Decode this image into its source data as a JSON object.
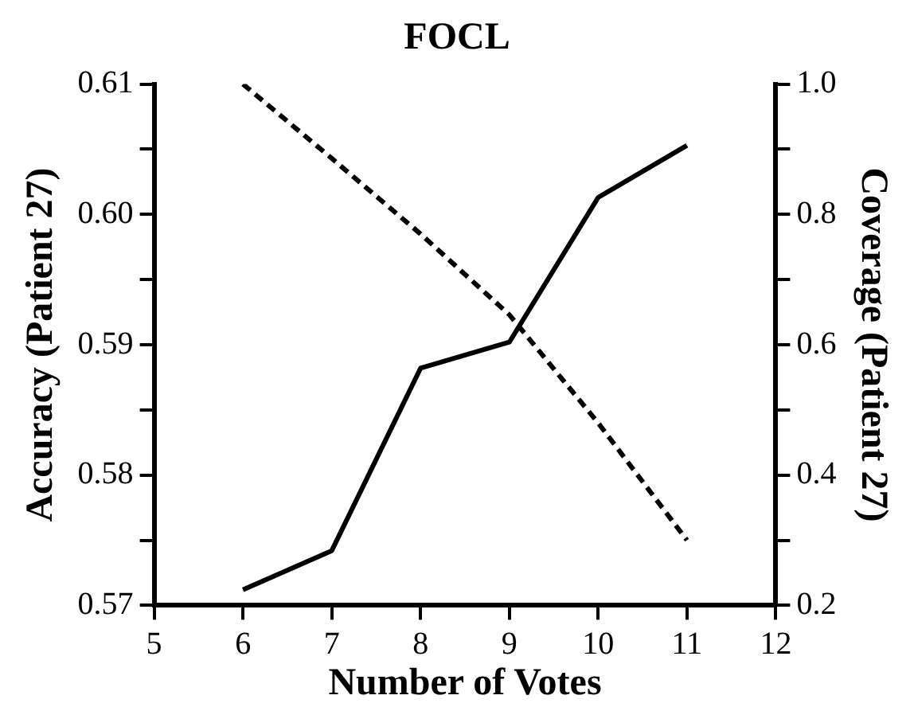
{
  "chart_data": {
    "type": "line",
    "title": "FOCL",
    "xlabel": "Number of Votes",
    "ylabel": "Accuracy (Patient 27)",
    "y2label": "Coverage (Patient 27)",
    "x": [
      6,
      7,
      8,
      9,
      10,
      11
    ],
    "series": [
      {
        "color": "#000000",
        "line_style": "solid",
        "values": [
          0.5712,
          0.5742,
          0.5882,
          0.5902,
          0.6013,
          0.6053
        ]
      },
      {
        "color": "#000000",
        "line_style": "dashed",
        "axis": "y2",
        "values": [
          1.0,
          0.886,
          0.77,
          0.646,
          0.48,
          0.3
        ]
      }
    ],
    "xlim": [
      5,
      12
    ],
    "xticks": [
      5,
      6,
      7,
      8,
      9,
      10,
      11,
      12
    ],
    "ylim": [
      0.57,
      0.61
    ],
    "yticks": [
      {
        "value": 0.57,
        "label": "0.57"
      },
      {
        "value": 0.575,
        "label": null
      },
      {
        "value": 0.58,
        "label": "0.58"
      },
      {
        "value": 0.585,
        "label": null
      },
      {
        "value": 0.59,
        "label": "0.59"
      },
      {
        "value": 0.595,
        "label": null
      },
      {
        "value": 0.6,
        "label": "0.60"
      },
      {
        "value": 0.605,
        "label": null
      },
      {
        "value": 0.61,
        "label": "0.61"
      }
    ],
    "y2lim": [
      0.2,
      1.0
    ],
    "y2ticks": [
      {
        "value": 0.2,
        "label": "0.2"
      },
      {
        "value": 0.3,
        "label": null
      },
      {
        "value": 0.4,
        "label": "0.4"
      },
      {
        "value": 0.5,
        "label": null
      },
      {
        "value": 0.6,
        "label": "0.6"
      },
      {
        "value": 0.7,
        "label": null
      },
      {
        "value": 0.8,
        "label": "0.8"
      },
      {
        "value": 0.9,
        "label": null
      },
      {
        "value": 1.0,
        "label": "1.0"
      }
    ],
    "grid": false,
    "legend": false,
    "marker": "none"
  }
}
